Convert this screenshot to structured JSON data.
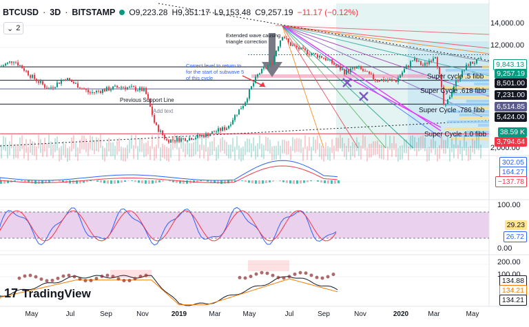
{
  "header": {
    "symbol": "BTCUSD",
    "timeframe": "3D",
    "exchange": "BITSTAMP",
    "open": "O9,223.28",
    "high": "H9,351.17",
    "low": "L9,153.48",
    "close": "C9,257.19",
    "change": "−11.17 (−0.12%)"
  },
  "indicator_chip": {
    "count": "2"
  },
  "brand": {
    "name": "TradingView"
  },
  "price_scale": {
    "ticks": [
      "14,000.00",
      "12,000.00",
      "2,000.00"
    ],
    "labels": [
      {
        "text": "9,843.13",
        "bg": "#ffffff",
        "fg": "#089981"
      },
      {
        "text": "9,257.19",
        "bg": "#089981",
        "fg": "#ffffff"
      },
      {
        "text": "8,501.00",
        "bg": "#131722",
        "fg": "#ffffff"
      },
      {
        "text": "7,231.00",
        "bg": "#131722",
        "fg": "#ffffff"
      },
      {
        "text": "6,514.85",
        "bg": "#5b5a8c",
        "fg": "#ffffff"
      },
      {
        "text": "5,424.00",
        "bg": "#131722",
        "fg": "#ffffff"
      },
      {
        "text": "38.59 K",
        "bg": "#089981",
        "fg": "#ffffff"
      },
      {
        "text": "3,794.64",
        "bg": "#f23645",
        "fg": "#ffffff"
      }
    ]
  },
  "macd_scale": {
    "labels": [
      {
        "text": "302.05",
        "fg": "#2962ff"
      },
      {
        "text": "164.27",
        "fg": "#2962ff"
      },
      {
        "text": "−137.78",
        "fg": "#f23645"
      }
    ]
  },
  "stoch_scale": {
    "ticks": [
      "100.00",
      "0.00"
    ],
    "labels": [
      {
        "text": "29.23",
        "bg": "#ffe58f",
        "fg": "#131722"
      },
      {
        "text": "26.72",
        "bg": "#ffffff",
        "fg": "#2962ff"
      }
    ]
  },
  "pane4_scale": {
    "ticks": [
      "200.00",
      "100.00"
    ],
    "labels": [
      {
        "text": "134.88",
        "bg": "#ffffff",
        "fg": "#131722"
      },
      {
        "text": "134.21",
        "bg": "#ffffff",
        "fg": "#f57c00"
      },
      {
        "text": "134.21",
        "bg": "#ffffff",
        "fg": "#131722"
      }
    ]
  },
  "time_axis": [
    "May",
    "Jul",
    "Sep",
    "Nov",
    "2019",
    "Mar",
    "May",
    "Jul",
    "Sep",
    "Nov",
    "2020",
    "Mar",
    "May"
  ],
  "annotations": {
    "extended_wave": "Extended wave causing triangle correction",
    "correct_level": "Correct level to return to for the start of subwave 5 of this cycle",
    "previous_support": "Previous Support Line",
    "add_text": "Add text",
    "fib_618": "Super Cycle .618 fibb",
    "fib_786": "Super Cycle .786 fibb",
    "fib_10": "Super Cycle 1.0 fibb",
    "fib_5": "Super cycle .5 fibb"
  },
  "colors": {
    "up": "#089981",
    "down": "#f23645",
    "bg": "#ffffff",
    "stoch_band": "#e1bee7"
  }
}
